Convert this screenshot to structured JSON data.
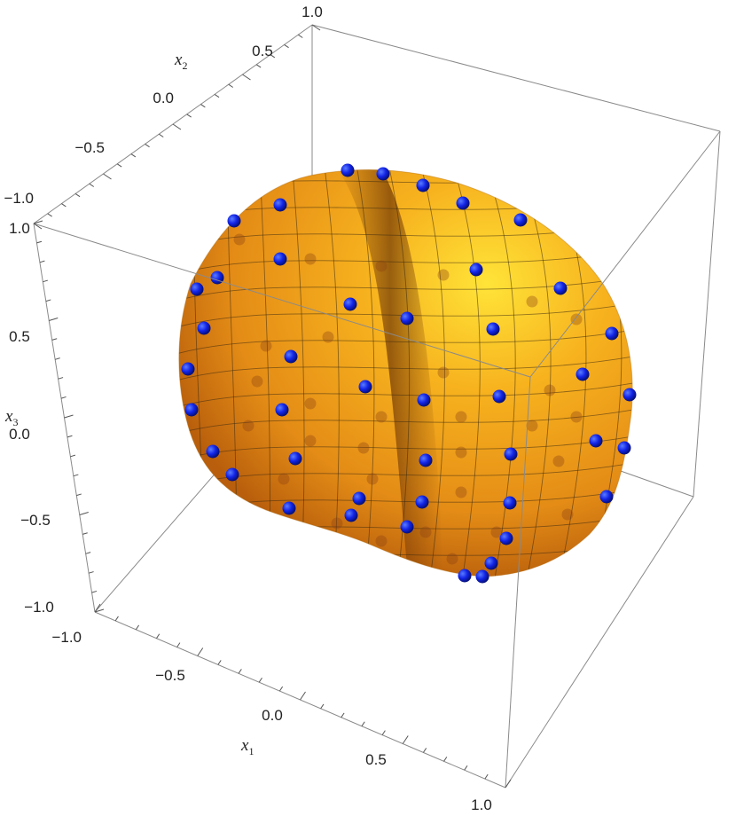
{
  "chart_data": {
    "type": "scatter3d",
    "title": "",
    "axes": {
      "x1": {
        "label": "x",
        "subscript": "1",
        "ticks": [
          "−1.0",
          "−0.5",
          "0.0",
          "0.5",
          "1.0"
        ],
        "range": [
          -1,
          1
        ]
      },
      "x2": {
        "label": "x",
        "subscript": "2",
        "ticks": [
          "−1.0",
          "−0.5",
          "0.0",
          "0.5",
          "1.0"
        ],
        "range": [
          -1,
          1
        ]
      },
      "x3": {
        "label": "x",
        "subscript": "3",
        "ticks": [
          "−1.0",
          "−0.5",
          "0.0",
          "0.5",
          "1.0"
        ],
        "range": [
          -1,
          1
        ]
      }
    },
    "surface": {
      "shape": "closed peanut-shaped surface with a central groove",
      "color": "#f0a020",
      "mesh": true
    },
    "points": {
      "color": "#1020e0",
      "shape": "sphere"
    },
    "box": true
  }
}
